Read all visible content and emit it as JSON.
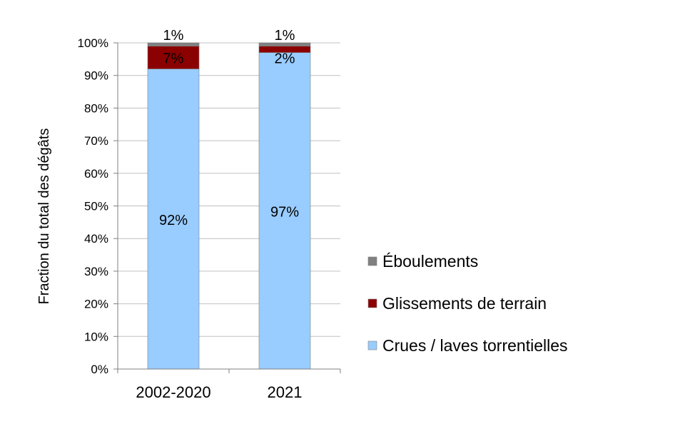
{
  "chart_data": {
    "type": "bar",
    "stacked": true,
    "ylabel": "Fraction du total des dégâts",
    "xlabel": "",
    "ylim": [
      0,
      100
    ],
    "yticks": [
      "0%",
      "10%",
      "20%",
      "30%",
      "40%",
      "50%",
      "60%",
      "70%",
      "80%",
      "90%",
      "100%"
    ],
    "grid": true,
    "legend_position": "right",
    "categories": [
      "2002-2020",
      "2021"
    ],
    "series": [
      {
        "key": "crues",
        "name": "Crues / laves torrentielles",
        "color": "#99ccff",
        "values": [
          92,
          97
        ],
        "labels": [
          "92%",
          "97%"
        ],
        "label_color": "#000000"
      },
      {
        "key": "glissements",
        "name": "Glissements de terrain",
        "color": "#8b0000",
        "values": [
          7,
          2
        ],
        "labels": [
          "7%",
          "2%"
        ],
        "label_color": "#ffffff"
      },
      {
        "key": "eboulements",
        "name": "Éboulements",
        "color": "#808080",
        "values": [
          1,
          1
        ],
        "labels": [
          "1%",
          "1%"
        ],
        "label_color": "#000000"
      }
    ]
  }
}
